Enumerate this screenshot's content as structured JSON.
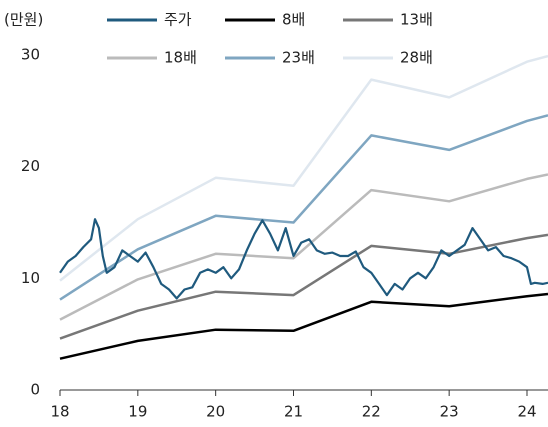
{
  "chart_data": {
    "type": "line",
    "y_label": "(만원)",
    "xlim": [
      18,
      24.27
    ],
    "xticks": [
      18,
      19,
      20,
      21,
      22,
      23,
      24
    ],
    "ylim": [
      0,
      30
    ],
    "yticks": [
      0,
      10,
      20,
      30
    ],
    "grid": false,
    "series": [
      {
        "name": "주가",
        "color": "#1f5a7e",
        "x": [
          18.0,
          18.1,
          18.2,
          18.3,
          18.4,
          18.45,
          18.5,
          18.55,
          18.6,
          18.7,
          18.8,
          18.9,
          19.0,
          19.1,
          19.2,
          19.3,
          19.4,
          19.5,
          19.6,
          19.7,
          19.8,
          19.9,
          20.0,
          20.1,
          20.2,
          20.3,
          20.4,
          20.5,
          20.6,
          20.7,
          20.8,
          20.9,
          21.0,
          21.1,
          21.2,
          21.3,
          21.4,
          21.5,
          21.6,
          21.7,
          21.8,
          21.9,
          22.0,
          22.1,
          22.2,
          22.3,
          22.4,
          22.5,
          22.6,
          22.7,
          22.8,
          22.9,
          23.0,
          23.1,
          23.2,
          23.3,
          23.4,
          23.5,
          23.6,
          23.7,
          23.8,
          23.9,
          24.0,
          24.05,
          24.1,
          24.2,
          24.27
        ],
        "values": [
          10.5,
          11.5,
          12.0,
          12.8,
          13.5,
          15.3,
          14.5,
          12.0,
          10.5,
          11.0,
          12.5,
          12.0,
          11.5,
          12.3,
          11.0,
          9.5,
          9.0,
          8.2,
          9.0,
          9.2,
          10.5,
          10.8,
          10.5,
          11.0,
          10.0,
          10.8,
          12.5,
          14.0,
          15.2,
          14.0,
          12.5,
          14.5,
          12.0,
          13.2,
          13.5,
          12.5,
          12.2,
          12.3,
          12.0,
          12.0,
          12.4,
          11.0,
          10.5,
          9.5,
          8.5,
          9.5,
          9.0,
          10.0,
          10.5,
          10.0,
          11.0,
          12.5,
          12.0,
          12.5,
          13.0,
          14.5,
          13.5,
          12.5,
          12.8,
          12.0,
          11.8,
          11.5,
          11.0,
          9.5,
          9.6,
          9.5,
          9.6
        ]
      },
      {
        "name": "8배",
        "color": "#000000",
        "x": [
          18,
          19,
          20,
          21,
          22,
          23,
          24,
          24.27
        ],
        "values": [
          2.8,
          4.4,
          5.4,
          5.3,
          7.9,
          7.5,
          8.4,
          8.6
        ]
      },
      {
        "name": "13배",
        "color": "#777777",
        "x": [
          18,
          19,
          20,
          21,
          22,
          23,
          24,
          24.27
        ],
        "values": [
          4.6,
          7.1,
          8.8,
          8.5,
          12.9,
          12.2,
          13.6,
          13.9
        ]
      },
      {
        "name": "18배",
        "color": "#bbbbbb",
        "x": [
          18,
          19,
          20,
          21,
          22,
          23,
          24,
          24.27
        ],
        "values": [
          6.3,
          9.9,
          12.2,
          11.8,
          17.9,
          16.9,
          18.9,
          19.3
        ]
      },
      {
        "name": "23배",
        "color": "#7fa6c1",
        "x": [
          18,
          19,
          20,
          21,
          22,
          23,
          24,
          24.27
        ],
        "values": [
          8.1,
          12.6,
          15.6,
          15.0,
          22.8,
          21.5,
          24.1,
          24.6
        ]
      },
      {
        "name": "28배",
        "color": "#dfe7ef",
        "x": [
          18,
          19,
          20,
          21,
          22,
          23,
          24,
          24.27
        ],
        "values": [
          9.8,
          15.3,
          19.0,
          18.3,
          27.8,
          26.2,
          29.4,
          29.9
        ]
      }
    ]
  }
}
